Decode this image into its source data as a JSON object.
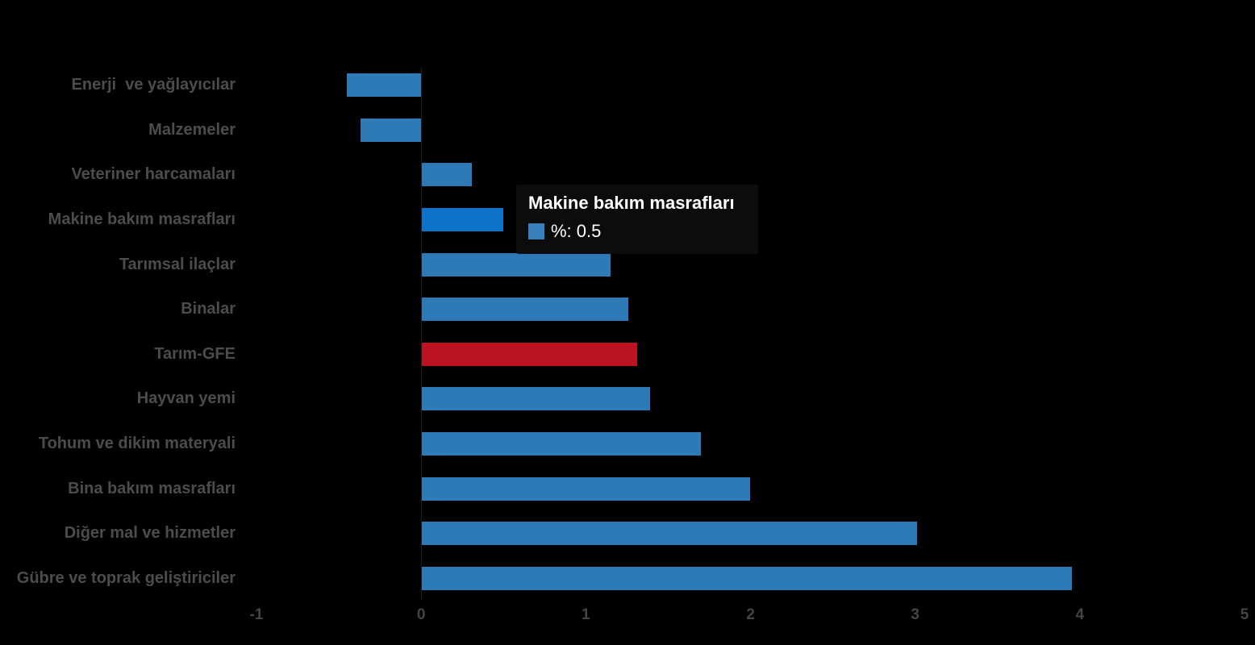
{
  "chart_data": {
    "type": "bar",
    "orientation": "horizontal",
    "title": "",
    "xlabel": "",
    "ylabel": "",
    "xlim": [
      -1,
      5
    ],
    "x_ticks": [
      "-1",
      "0",
      "1",
      "2",
      "3",
      "4",
      "5"
    ],
    "grid": false,
    "legend_position": "none",
    "categories": [
      "Enerji  ve yağlayıcılar",
      "Malzemeler",
      "Veteriner harcamaları",
      "Makine bakım masrafları",
      "Tarımsal ilaçlar",
      "Binalar",
      "Tarım-GFE",
      "Hayvan yemi",
      "Tohum ve dikim materyali",
      "Bina bakım masrafları",
      "Diğer mal ve hizmetler",
      "Gübre ve toprak geliştiriciler"
    ],
    "series": [
      {
        "name": "%",
        "values": [
          -0.45,
          -0.37,
          0.31,
          0.5,
          1.15,
          1.26,
          1.31,
          1.39,
          1.7,
          2.0,
          3.01,
          3.95
        ]
      }
    ],
    "highlighted_index": 3,
    "accent_index": 6
  },
  "tooltip": {
    "title": "Makine bakım masrafları",
    "series_label": "%",
    "value": "0.5",
    "text": "%: 0.5"
  },
  "colors": {
    "background": "#000000",
    "bar_normal": "#2e7ab7",
    "bar_highlight": "#0f72c9",
    "bar_accent_red": "#bb1322",
    "tooltip_marker": "#3a80be",
    "label_text": "#4c4c4c",
    "tick_text": "#454545"
  }
}
